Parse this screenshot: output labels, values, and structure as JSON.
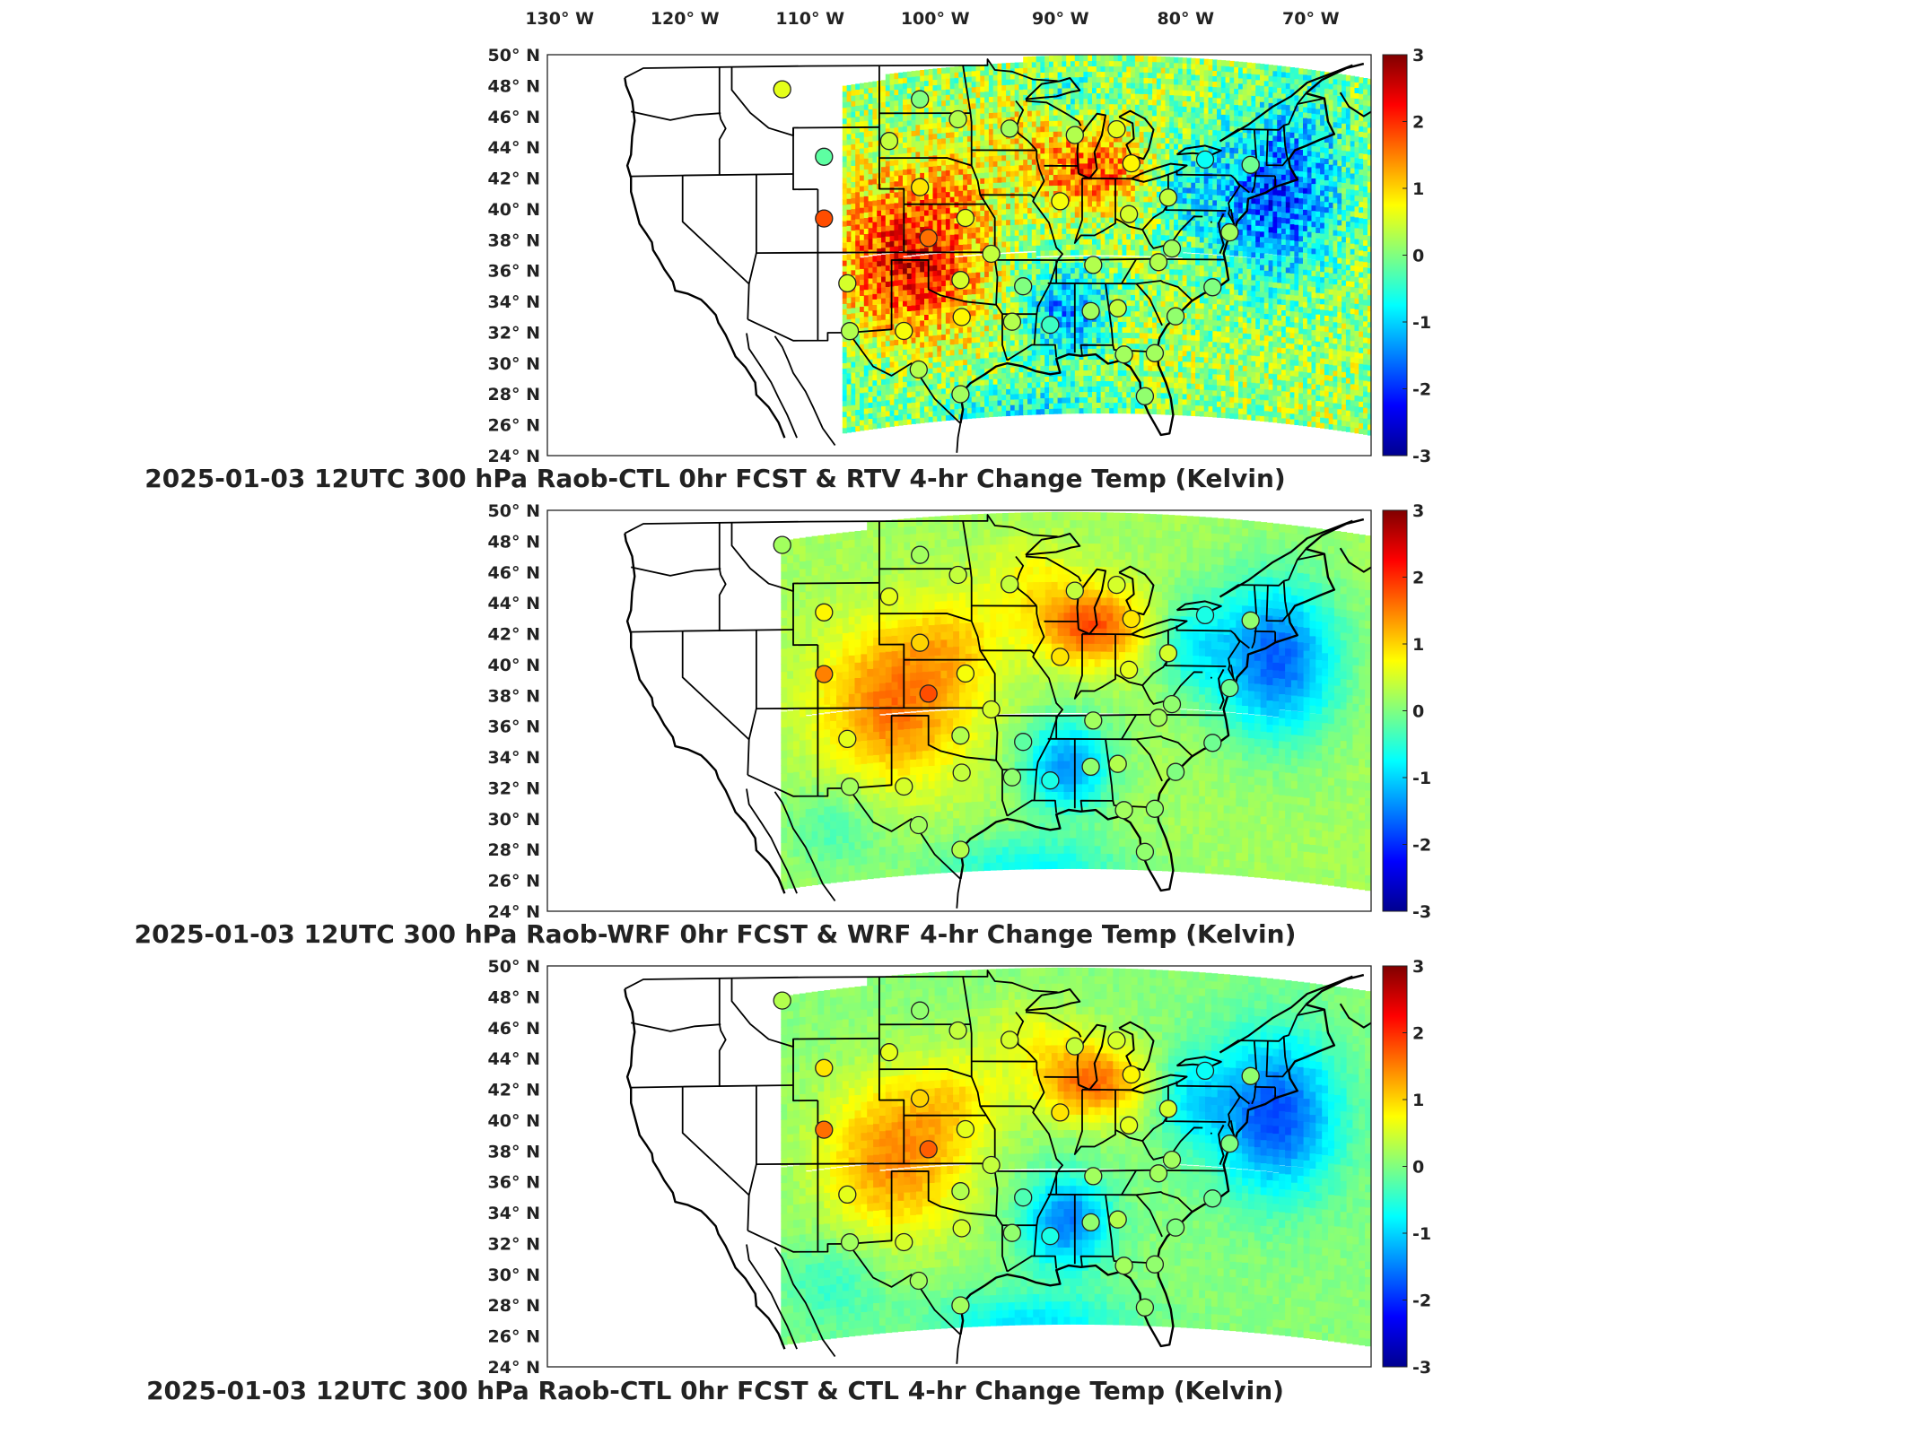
{
  "longitude_labels": [
    "130° W",
    "120° W",
    "110° W",
    "100° W",
    "90° W",
    "80° W",
    "70° W"
  ],
  "latitude_labels": [
    "50° N",
    "48° N",
    "46° N",
    "44° N",
    "42° N",
    "40° N",
    "38° N",
    "36° N",
    "34° N",
    "32° N",
    "30° N",
    "28° N",
    "26° N",
    "24° N"
  ],
  "colorbar": {
    "ticks": [
      "3",
      "2",
      "1",
      "0",
      "-1",
      "-2",
      "-3"
    ],
    "range": [
      -3,
      3
    ],
    "colormap": "jet",
    "colors": [
      "#00008f",
      "#0000ff",
      "#00ffff",
      "#80ff80",
      "#ffff00",
      "#ff8000",
      "#ff0000",
      "#800000"
    ]
  },
  "panels": [
    {
      "title": "2025-01-03 12UTC 300 hPa Raob-CTL 0hr FCST & RTV 4-hr Change Temp (Kelvin)",
      "field_style": "noisy-retrieval",
      "field_west_edge_lon": -107
    },
    {
      "title": "2025-01-03 12UTC 300 hPa Raob-WRF 0hr FCST & WRF 4-hr Change Temp (Kelvin)",
      "field_style": "smooth-model",
      "field_west_edge_lon": -112
    },
    {
      "title": "2025-01-03 12UTC 300 hPa Raob-CTL 0hr FCST & CTL 4-hr Change Temp (Kelvin)",
      "field_style": "smooth-model",
      "field_west_edge_lon": -112
    }
  ],
  "map_extent": {
    "lon": [
      -131,
      -64
    ],
    "lat": [
      24,
      50
    ]
  },
  "raob_stations": [
    {
      "lon": -111.9,
      "lat": 47.5,
      "v": [
        0.6,
        0.2,
        0.3
      ]
    },
    {
      "lon": -108.5,
      "lat": 43.1,
      "v": [
        -0.2,
        0.8,
        0.9
      ]
    },
    {
      "lon": -108.5,
      "lat": 39.1,
      "v": [
        1.8,
        1.5,
        1.6
      ]
    },
    {
      "lon": -106.6,
      "lat": 35.0,
      "v": [
        0.5,
        0.6,
        0.6
      ]
    },
    {
      "lon": -106.4,
      "lat": 31.9,
      "v": [
        0.3,
        0.2,
        0.2
      ]
    },
    {
      "lon": -102.0,
      "lat": 31.9,
      "v": [
        0.7,
        0.5,
        0.5
      ]
    },
    {
      "lon": -100.7,
      "lat": 46.8,
      "v": [
        0.0,
        0.2,
        0.1
      ]
    },
    {
      "lon": -97.6,
      "lat": 45.5,
      "v": [
        0.3,
        0.4,
        0.4
      ]
    },
    {
      "lon": -103.2,
      "lat": 44.1,
      "v": [
        0.4,
        0.6,
        0.6
      ]
    },
    {
      "lon": -100.7,
      "lat": 41.1,
      "v": [
        0.9,
        1.0,
        1.0
      ]
    },
    {
      "lon": -100.0,
      "lat": 37.8,
      "v": [
        1.6,
        1.8,
        1.7
      ]
    },
    {
      "lon": -97.4,
      "lat": 35.2,
      "v": [
        0.5,
        0.3,
        0.3
      ]
    },
    {
      "lon": -97.3,
      "lat": 32.8,
      "v": [
        0.8,
        0.4,
        0.5
      ]
    },
    {
      "lon": -97.4,
      "lat": 27.8,
      "v": [
        0.2,
        0.3,
        0.2
      ]
    },
    {
      "lon": -97.0,
      "lat": 39.1,
      "v": [
        0.6,
        0.7,
        0.6
      ]
    },
    {
      "lon": -100.8,
      "lat": 29.4,
      "v": [
        0.3,
        0.2,
        0.2
      ]
    },
    {
      "lon": -93.4,
      "lat": 44.9,
      "v": [
        0.2,
        0.4,
        0.5
      ]
    },
    {
      "lon": -94.9,
      "lat": 36.9,
      "v": [
        0.4,
        0.5,
        0.4
      ]
    },
    {
      "lon": -92.3,
      "lat": 34.8,
      "v": [
        0.0,
        -0.2,
        -0.3
      ]
    },
    {
      "lon": -93.2,
      "lat": 32.5,
      "v": [
        0.3,
        0.1,
        0.1
      ]
    },
    {
      "lon": -90.1,
      "lat": 32.3,
      "v": [
        -0.4,
        -0.6,
        -0.6
      ]
    },
    {
      "lon": -89.3,
      "lat": 40.2,
      "v": [
        0.7,
        0.9,
        0.9
      ]
    },
    {
      "lon": -88.1,
      "lat": 44.5,
      "v": [
        0.3,
        0.4,
        0.4
      ]
    },
    {
      "lon": -84.7,
      "lat": 44.9,
      "v": [
        0.6,
        0.5,
        0.5
      ]
    },
    {
      "lon": -83.5,
      "lat": 42.7,
      "v": [
        0.8,
        0.9,
        0.8
      ]
    },
    {
      "lon": -86.6,
      "lat": 36.2,
      "v": [
        0.3,
        0.2,
        0.2
      ]
    },
    {
      "lon": -86.8,
      "lat": 33.2,
      "v": [
        0.2,
        0.1,
        0.1
      ]
    },
    {
      "lon": -84.6,
      "lat": 33.4,
      "v": [
        0.4,
        0.3,
        0.3
      ]
    },
    {
      "lon": -84.1,
      "lat": 30.4,
      "v": [
        0.2,
        0.2,
        0.2
      ]
    },
    {
      "lon": -82.4,
      "lat": 27.7,
      "v": [
        0.1,
        0.1,
        0.1
      ]
    },
    {
      "lon": -80.5,
      "lat": 40.5,
      "v": [
        0.4,
        0.5,
        0.5
      ]
    },
    {
      "lon": -83.7,
      "lat": 39.4,
      "v": [
        0.5,
        0.6,
        0.6
      ]
    },
    {
      "lon": -80.2,
      "lat": 37.2,
      "v": [
        0.2,
        0.1,
        0.2
      ]
    },
    {
      "lon": -79.9,
      "lat": 32.9,
      "v": [
        0.1,
        0.0,
        0.0
      ]
    },
    {
      "lon": -76.9,
      "lat": 34.8,
      "v": [
        0.0,
        -0.1,
        -0.1
      ]
    },
    {
      "lon": -81.3,
      "lat": 36.4,
      "v": [
        0.3,
        0.2,
        0.2
      ]
    },
    {
      "lon": -77.5,
      "lat": 43.0,
      "v": [
        -0.7,
        -0.6,
        -0.7
      ]
    },
    {
      "lon": -73.8,
      "lat": 42.7,
      "v": [
        -0.1,
        0.1,
        0.1
      ]
    },
    {
      "lon": -81.6,
      "lat": 30.5,
      "v": [
        0.2,
        0.1,
        0.1
      ]
    },
    {
      "lon": -75.5,
      "lat": 38.3,
      "v": [
        0.2,
        -0.1,
        0.0
      ]
    }
  ]
}
